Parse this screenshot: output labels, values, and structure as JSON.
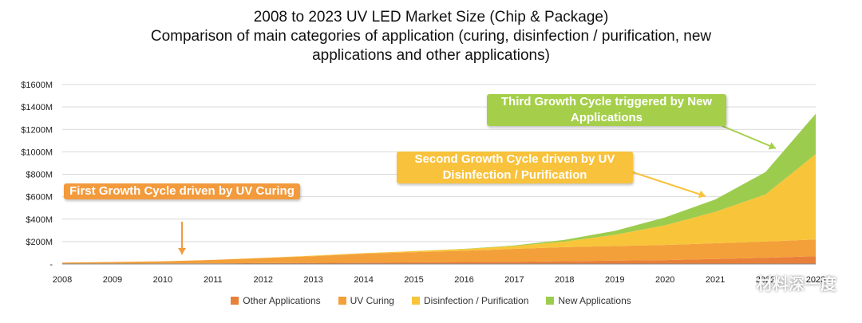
{
  "title": {
    "line1": "2008 to 2023 UV LED Market Size (Chip & Package)",
    "line2": "Comparison of main categories of application (curing, disinfection / purification, new",
    "line3": "applications and other applications)"
  },
  "callouts": {
    "first": "First Growth Cycle driven by UV Curing",
    "second": "Second Growth Cycle driven by UV Disinfection / Purification",
    "third": "Third Growth Cycle triggered by New Applications"
  },
  "watermark": "材料深一度",
  "colors": {
    "other": "#e8803a",
    "curing": "#f4a03a",
    "disinfection": "#f8c53a",
    "new": "#9ccc4e",
    "first_callout": "#f39a3c",
    "second_callout": "#f8c23c",
    "third_callout": "#a5cf4a"
  },
  "chart_data": {
    "type": "area",
    "stacked": true,
    "x": [
      "2008",
      "2009",
      "2010",
      "2011",
      "2012",
      "2013",
      "2014",
      "2015",
      "2016",
      "2017",
      "2018",
      "2019",
      "2020",
      "2021",
      "2022",
      "2023"
    ],
    "y_tick_labels": [
      "-",
      "$200M",
      "$400M",
      "$600M",
      "$800M",
      "$1000M",
      "$1200M",
      "$1400M",
      "$1600M"
    ],
    "ylim": [
      0,
      1600
    ],
    "grid": true,
    "legend_position": "bottom",
    "series": [
      {
        "name": "Other Applications",
        "values": [
          2,
          3,
          4,
          6,
          8,
          10,
          12,
          15,
          18,
          20,
          25,
          30,
          35,
          45,
          55,
          70
        ]
      },
      {
        "name": "UV Curing",
        "values": [
          10,
          15,
          20,
          30,
          45,
          60,
          80,
          90,
          100,
          115,
          125,
          130,
          135,
          140,
          145,
          150
        ]
      },
      {
        "name": "Disinfection / Purification",
        "values": [
          0,
          0,
          0,
          0,
          2,
          5,
          5,
          10,
          15,
          25,
          50,
          100,
          175,
          280,
          420,
          760
        ]
      },
      {
        "name": "New Applications",
        "values": [
          0,
          0,
          0,
          0,
          0,
          0,
          0,
          0,
          2,
          5,
          15,
          35,
          70,
          110,
          200,
          360
        ]
      }
    ]
  }
}
